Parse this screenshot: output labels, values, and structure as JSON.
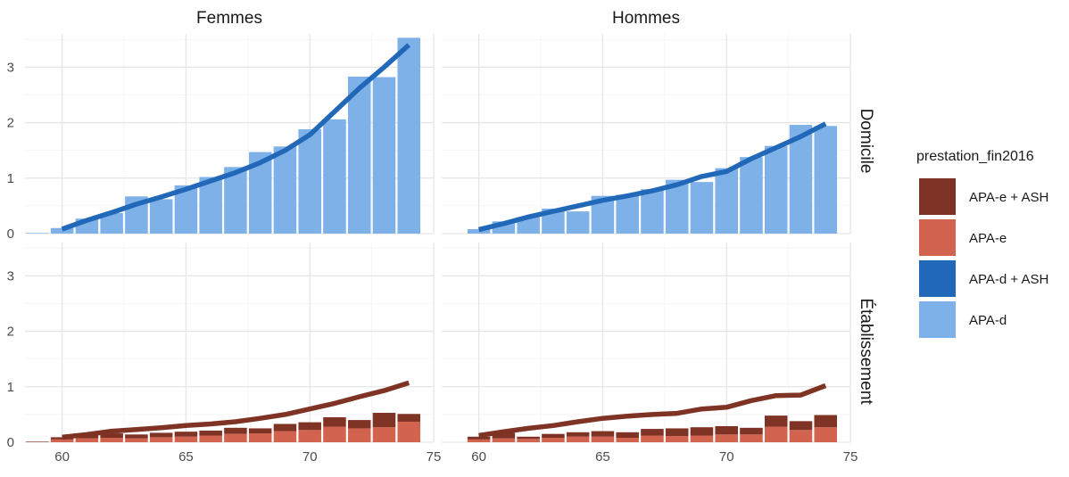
{
  "chart_data": {
    "type": "bar",
    "x": [
      59,
      60,
      61,
      62,
      63,
      64,
      65,
      66,
      67,
      68,
      69,
      70,
      71,
      72,
      73,
      74
    ],
    "xlim": [
      58.5,
      75
    ],
    "ylim": [
      0,
      3.6
    ],
    "x_ticks": [
      60,
      65,
      70,
      75
    ],
    "y_ticks": [
      0,
      1,
      2,
      3
    ],
    "grid": true,
    "legend_position": "right",
    "legend_title": "prestation_fin2016",
    "legend": [
      {
        "name": "APA-e + ASH",
        "color": "#7f3324"
      },
      {
        "name": "APA-e",
        "color": "#d1634f"
      },
      {
        "name": "APA-d + ASH",
        "color": "#2268b8"
      },
      {
        "name": "APA-d",
        "color": "#7eb1e8"
      }
    ],
    "col_labels": [
      "Femmes",
      "Hommes"
    ],
    "row_labels": [
      "Domicile",
      "Établissement"
    ],
    "panels": [
      {
        "col": "Femmes",
        "row": "Domicile",
        "series": [
          {
            "name": "APA-d",
            "values": [
              0.01,
              0.1,
              0.27,
              0.37,
              0.67,
              0.62,
              0.87,
              1.02,
              1.2,
              1.47,
              1.57,
              1.88,
              2.06,
              2.83,
              2.82,
              3.53
            ]
          },
          {
            "name": "APA-d + ASH",
            "values": [
              0,
              0,
              0,
              0,
              0,
              0,
              0,
              0,
              0,
              0,
              0,
              0,
              0,
              0,
              0,
              0
            ]
          }
        ],
        "trend": {
          "x": [
            60,
            61,
            62,
            63,
            64,
            65,
            66,
            67,
            68,
            69,
            70,
            71,
            72,
            73,
            74
          ],
          "y": [
            0.08,
            0.24,
            0.38,
            0.53,
            0.66,
            0.8,
            0.95,
            1.1,
            1.28,
            1.5,
            1.78,
            2.2,
            2.62,
            3.0,
            3.4
          ]
        }
      },
      {
        "col": "Hommes",
        "row": "Domicile",
        "series": [
          {
            "name": "APA-d",
            "values": [
              0,
              0.08,
              0.22,
              0.3,
              0.45,
              0.4,
              0.68,
              0.7,
              0.8,
              0.97,
              0.93,
              1.18,
              1.38,
              1.58,
              1.96,
              1.94
            ]
          },
          {
            "name": "APA-d + ASH",
            "values": [
              0,
              0,
              0,
              0,
              0,
              0,
              0,
              0,
              0,
              0,
              0,
              0,
              0,
              0,
              0,
              0
            ]
          }
        ],
        "trend": {
          "x": [
            60,
            61,
            62,
            63,
            64,
            65,
            66,
            67,
            68,
            69,
            70,
            71,
            72,
            73,
            74
          ],
          "y": [
            0.07,
            0.18,
            0.3,
            0.4,
            0.5,
            0.6,
            0.68,
            0.77,
            0.88,
            1.03,
            1.12,
            1.35,
            1.55,
            1.75,
            1.98
          ]
        }
      },
      {
        "col": "Femmes",
        "row": "Établissement",
        "series": [
          {
            "name": "APA-e",
            "values": [
              0,
              0.05,
              0.07,
              0.08,
              0.07,
              0.09,
              0.1,
              0.12,
              0.15,
              0.16,
              0.2,
              0.22,
              0.28,
              0.25,
              0.27,
              0.37
            ]
          },
          {
            "name": "APA-e + ASH",
            "values": [
              0.01,
              0.04,
              0.07,
              0.08,
              0.07,
              0.08,
              0.09,
              0.09,
              0.11,
              0.09,
              0.13,
              0.14,
              0.17,
              0.15,
              0.26,
              0.14
            ]
          }
        ],
        "trend": {
          "x": [
            60,
            61,
            62,
            63,
            64,
            65,
            66,
            67,
            68,
            69,
            70,
            71,
            72,
            73,
            74
          ],
          "y": [
            0.09,
            0.14,
            0.2,
            0.23,
            0.26,
            0.3,
            0.33,
            0.37,
            0.43,
            0.5,
            0.6,
            0.7,
            0.82,
            0.93,
            1.07
          ]
        }
      },
      {
        "col": "Hommes",
        "row": "Établissement",
        "series": [
          {
            "name": "APA-e",
            "values": [
              0,
              0.05,
              0.07,
              0.06,
              0.08,
              0.1,
              0.1,
              0.08,
              0.12,
              0.11,
              0.12,
              0.14,
              0.14,
              0.28,
              0.22,
              0.27
            ]
          },
          {
            "name": "APA-e + ASH",
            "values": [
              0,
              0.05,
              0.1,
              0.04,
              0.07,
              0.08,
              0.1,
              0.1,
              0.12,
              0.14,
              0.15,
              0.15,
              0.12,
              0.2,
              0.16,
              0.22
            ]
          }
        ],
        "trend": {
          "x": [
            60,
            61,
            62,
            63,
            64,
            65,
            66,
            67,
            68,
            69,
            70,
            71,
            72,
            73,
            74
          ],
          "y": [
            0.12,
            0.19,
            0.25,
            0.3,
            0.37,
            0.43,
            0.47,
            0.5,
            0.52,
            0.6,
            0.63,
            0.75,
            0.84,
            0.85,
            1.02
          ]
        }
      }
    ]
  }
}
